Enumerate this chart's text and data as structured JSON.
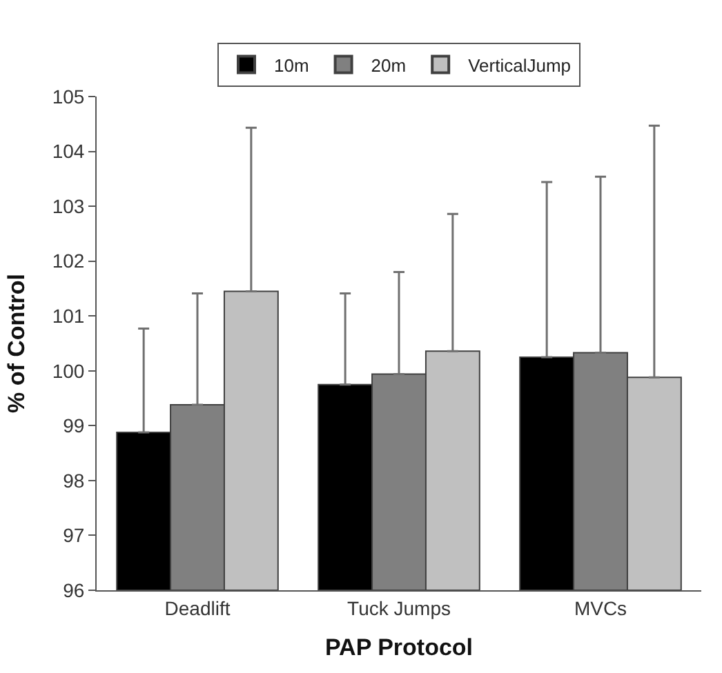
{
  "chart_data": {
    "type": "bar",
    "xlabel": "PAP Protocol",
    "ylabel": "% of Control",
    "categories": [
      "Deadlift",
      "Tuck Jumps",
      "MVCs"
    ],
    "series": [
      {
        "name": "10m",
        "color": "#000000",
        "values": [
          98.88,
          99.75,
          100.25
        ],
        "errors": [
          [
            98.88,
            100.77
          ],
          [
            99.75,
            101.41
          ],
          [
            100.25,
            103.44
          ]
        ]
      },
      {
        "name": "20m",
        "color": "#808080",
        "values": [
          99.38,
          99.94,
          100.33
        ],
        "errors": [
          [
            99.38,
            101.41
          ],
          [
            99.94,
            101.8
          ],
          [
            100.33,
            103.54
          ]
        ]
      },
      {
        "name": "VerticalJump",
        "color": "#c0c0c0",
        "values": [
          101.45,
          100.36,
          99.88
        ],
        "errors": [
          [
            101.45,
            104.43
          ],
          [
            100.36,
            102.86
          ],
          [
            99.88,
            104.47
          ]
        ]
      }
    ],
    "ylim": [
      96,
      105
    ],
    "yticks": [
      96,
      97,
      98,
      99,
      100,
      101,
      102,
      103,
      104,
      105
    ],
    "legend": "top"
  }
}
